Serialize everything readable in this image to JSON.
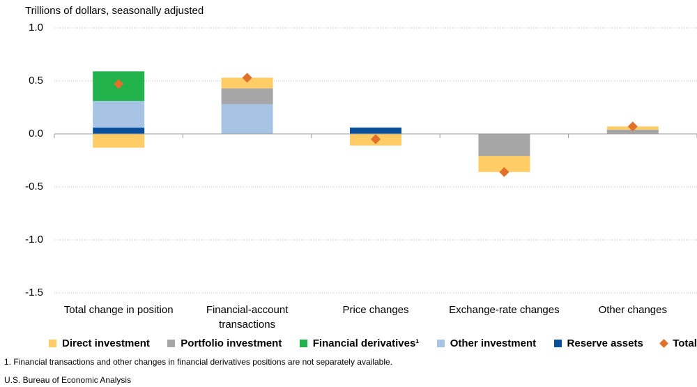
{
  "chart_data": {
    "type": "bar",
    "stacked": true,
    "y_label": "Trillions of dollars, seasonally adjusted",
    "categories": [
      "Total change in position",
      "Financial-account transactions",
      "Price changes",
      "Exchange-rate changes",
      "Other changes"
    ],
    "series": [
      {
        "name": "Direct investment",
        "color": "#FFCC66",
        "values": [
          -0.13,
          0.1,
          -0.11,
          -0.15,
          0.03
        ]
      },
      {
        "name": "Portfolio investment",
        "color": "#A6A6A6",
        "values": [
          null,
          0.15,
          null,
          -0.21,
          0.04
        ]
      },
      {
        "name": "Financial derivatives¹",
        "color": "#21B24B",
        "values": [
          0.28,
          null,
          null,
          null,
          null
        ]
      },
      {
        "name": "Other investment",
        "color": "#A8C4E5",
        "values": [
          0.25,
          0.28,
          null,
          null,
          null
        ]
      },
      {
        "name": "Reserve assets",
        "color": "#0B4E9A",
        "values": [
          0.06,
          null,
          0.06,
          null,
          null
        ]
      },
      {
        "name": "Total",
        "color": "#E0702A",
        "type": "marker",
        "values": [
          0.47,
          0.53,
          -0.05,
          -0.36,
          0.07
        ]
      }
    ],
    "ylim": [
      -1.5,
      1.0
    ],
    "yticks": [
      {
        "value": -1.5,
        "label": "-1.5"
      },
      {
        "value": -1.0,
        "label": "-1.0"
      },
      -0.5,
      {
        "value": 0,
        "label": "0.0"
      },
      0.5,
      {
        "value": 1.0,
        "label": "1.0"
      }
    ],
    "grid": true,
    "legend": "bottom",
    "footnote": "1. Financial transactions and other changes in financial derivatives positions are not separately available.",
    "source": "U.S. Bureau of Economic Analysis"
  }
}
